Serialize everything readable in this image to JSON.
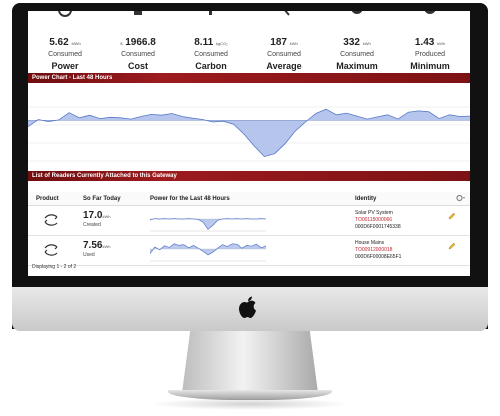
{
  "stats": [
    {
      "value": "5.62",
      "prefix": "",
      "unit": "MWh",
      "sub": "Consumed",
      "label": "Power",
      "icon": "plug-icon"
    },
    {
      "value": "1966.8",
      "prefix": "$",
      "unit": "",
      "sub": "Consumed",
      "label": "Cost",
      "icon": "money-icon"
    },
    {
      "value": "8.11",
      "prefix": "",
      "unit": "kgCO₂",
      "sub": "Consumed",
      "label": "Carbon",
      "icon": "leaf-icon"
    },
    {
      "value": "187",
      "prefix": "",
      "unit": "kWh",
      "sub": "Consumed",
      "label": "Average",
      "icon": "scale-icon"
    },
    {
      "value": "332",
      "prefix": "",
      "unit": "kWh",
      "sub": "Consumed",
      "label": "Maximum",
      "icon": "gauge-max-icon"
    },
    {
      "value": "1.43",
      "prefix": "",
      "unit": "kWh",
      "sub": "Produced",
      "label": "Minimum",
      "icon": "gauge-min-icon"
    }
  ],
  "power_chart": {
    "title": "Power Chart - Last 48 Hours",
    "chart_data": {
      "type": "area",
      "title": "Power Chart - Last 48 Hours",
      "baseline": 0,
      "ylim": [
        -10,
        5
      ],
      "values": [
        -1.5,
        0.2,
        -0.3,
        0.1,
        1.8,
        0.6,
        1.2,
        0.4,
        0.7,
        0.6,
        0.3,
        0.9,
        1.4,
        1.2,
        1.6,
        0.9,
        0.5,
        0.2,
        -0.4,
        -0.2,
        -0.9,
        -3.2,
        -6.0,
        -8.5,
        -7.8,
        -5.5,
        -2.5,
        -0.4,
        1.6,
        2.6,
        1.3,
        1.7,
        1.0,
        0.3,
        0.8,
        1.3,
        0.3,
        1.9,
        2.2,
        2.0,
        0.4,
        1.3,
        0.9,
        1.0
      ],
      "color": "#9db2e6",
      "line_color": "#5778c9"
    }
  },
  "readers": {
    "title": "List of Readers Currently Attached to this Gateway",
    "columns": [
      "Product",
      "So Far Today",
      "Power for the Last 48 Hours",
      "Identity"
    ],
    "rows": [
      {
        "today_value": "17.0",
        "today_unit": "kWh",
        "today_sub": "Created",
        "spark": [
          -0.3,
          0.1,
          0.0,
          0.1,
          0.0,
          0.1,
          0.0,
          0.0,
          0.1,
          0.0,
          -0.1,
          -0.8,
          -2.6,
          -1.6,
          -0.3,
          0.0,
          0.1,
          0.0,
          0.1,
          0.0,
          0.1,
          0.0,
          0.0,
          0.1,
          0.0
        ],
        "identity_name": "Solar PV System",
        "identity_code": "TO00115000066",
        "identity_id": "000D6F0001745338"
      },
      {
        "today_value": "7.56",
        "today_unit": "kWh",
        "today_sub": "Used",
        "spark": [
          -1.2,
          0.5,
          -0.2,
          0.8,
          0.4,
          1.3,
          0.9,
          1.1,
          0.3,
          0.9,
          0.2,
          -0.6,
          -1.5,
          -0.8,
          0.2,
          1.1,
          0.6,
          1.3,
          1.2,
          0.2,
          0.9,
          0.7,
          1.2,
          0.3,
          0.8
        ],
        "identity_name": "House Mains",
        "identity_code": "TO00912000018",
        "identity_id": "000D6F00008E65F1"
      }
    ]
  },
  "footer": {
    "text": "Displaying 1 - 2 of 2"
  },
  "colors": {
    "accent": "#8a1517",
    "identity_code": "#c0282e",
    "chart_fill": "#9db2e6",
    "chart_line": "#5778c9"
  }
}
